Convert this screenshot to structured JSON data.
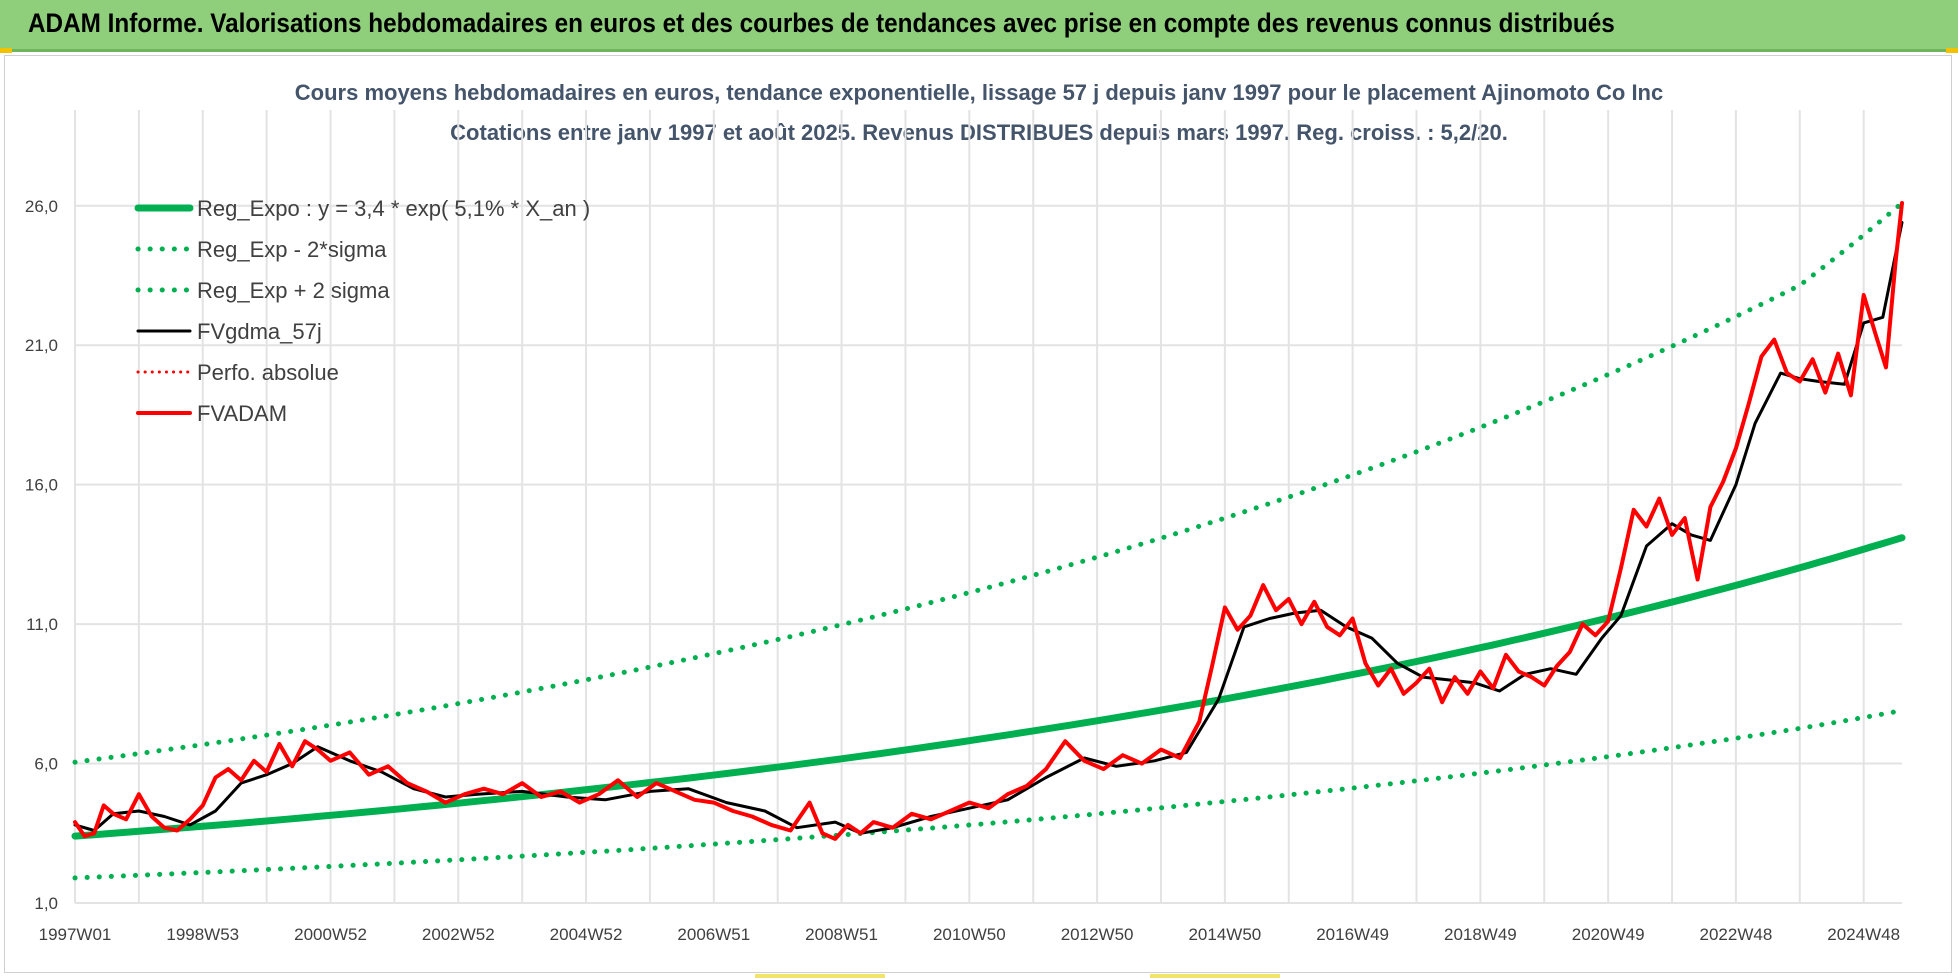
{
  "header": {
    "title": "ADAM Informe. Valorisations hebdomadaires en euros et des courbes de tendances avec prise en compte des revenus connus distribués",
    "background": "#8fce7a"
  },
  "chart_data": {
    "type": "line",
    "title": "Cours moyens hebdomadaires en euros, tendance exponentielle, lissage 57 j depuis janv 1997  pour le placement Ajinomoto Co Inc",
    "subtitle": "Cotations entre janv 1997 et août 2025.  Revenus DISTRIBUES depuis mars 1997. Reg. croiss. : 5,2/20.",
    "xlabel": "",
    "ylabel": "",
    "x_range": [
      1997.0,
      2025.6
    ],
    "ylim": [
      1.0,
      28.0
    ],
    "y_ticks": [
      1.0,
      6.0,
      11.0,
      16.0,
      21.0,
      26.0
    ],
    "y_tick_labels": [
      "1,0",
      "6,0",
      "11,0",
      "16,0",
      "21,0",
      "26,0"
    ],
    "x_ticks": [
      1997.0,
      1999.0,
      2001.0,
      2003.0,
      2005.0,
      2007.0,
      2009.0,
      2011.0,
      2013.0,
      2015.0,
      2017.0,
      2019.0,
      2021.0,
      2023.0,
      2025.0
    ],
    "x_tick_labels": [
      "1997W01",
      "1998W53",
      "2000W52",
      "2002W52",
      "2004W52",
      "2006W51",
      "2008W51",
      "2010W50",
      "2012W50",
      "2014W50",
      "2016W49",
      "2018W49",
      "2020W49",
      "2022W48",
      "2024W48"
    ],
    "grid": true,
    "legend_position": "top-left",
    "series": [
      {
        "name": "Reg_Expo : y = 3,4 * exp( 5,1% *  X_an )",
        "style": "solid",
        "color": "#00b050",
        "x": [
          1997.0,
          2000.0,
          2003.0,
          2006.0,
          2009.0,
          2012.0,
          2015.0,
          2018.0,
          2021.0,
          2024.0,
          2025.6
        ],
        "y": [
          3.4,
          3.94,
          4.58,
          5.32,
          6.17,
          7.17,
          8.32,
          9.66,
          11.22,
          13.02,
          14.1
        ]
      },
      {
        "name": "Reg_Exp - 2*sigma",
        "style": "dotted",
        "color": "#00b050",
        "x": [
          1997.0,
          2000.0,
          2003.0,
          2006.0,
          2009.0,
          2012.0,
          2015.0,
          2018.0,
          2021.0,
          2024.0,
          2025.6
        ],
        "y": [
          1.9,
          2.2,
          2.55,
          2.96,
          3.44,
          3.99,
          4.64,
          5.38,
          6.25,
          7.26,
          7.9
        ]
      },
      {
        "name": "Reg_Exp + 2 sigma",
        "style": "dotted",
        "color": "#00b050",
        "x": [
          1997.0,
          2000.0,
          2003.0,
          2006.0,
          2009.0,
          2012.0,
          2015.0,
          2018.0,
          2021.0,
          2024.0,
          2025.6
        ],
        "y": [
          6.05,
          7.02,
          8.15,
          9.46,
          10.98,
          12.75,
          14.8,
          17.18,
          19.95,
          23.15,
          26.1
        ]
      },
      {
        "name": "FVgdma_57j",
        "style": "solid",
        "color": "#000000",
        "x": [
          1997.0,
          1997.3,
          1997.6,
          1998.0,
          1998.4,
          1998.8,
          1999.2,
          1999.6,
          2000.0,
          2000.4,
          2000.8,
          2001.3,
          2001.8,
          2002.3,
          2002.8,
          2003.3,
          2004.0,
          2004.7,
          2005.3,
          2006.0,
          2006.6,
          2007.2,
          2007.8,
          2008.3,
          2008.9,
          2009.3,
          2009.8,
          2010.4,
          2011.0,
          2011.6,
          2012.2,
          2012.8,
          2013.3,
          2013.9,
          2014.4,
          2014.9,
          2015.3,
          2015.7,
          2016.1,
          2016.5,
          2016.9,
          2017.3,
          2017.7,
          2018.1,
          2018.5,
          2018.9,
          2019.3,
          2019.7,
          2020.1,
          2020.5,
          2020.9,
          2021.2,
          2021.6,
          2022.0,
          2022.3,
          2022.6,
          2023.0,
          2023.3,
          2023.7,
          2024.0,
          2024.3,
          2024.7,
          2025.0,
          2025.3,
          2025.6
        ],
        "y": [
          3.8,
          3.6,
          4.2,
          4.3,
          4.1,
          3.8,
          4.3,
          5.3,
          5.6,
          6.0,
          6.6,
          6.1,
          5.7,
          5.1,
          4.8,
          4.9,
          5.0,
          4.8,
          4.7,
          5.0,
          5.1,
          4.6,
          4.3,
          3.7,
          3.9,
          3.5,
          3.7,
          4.1,
          4.4,
          4.7,
          5.5,
          6.2,
          5.9,
          6.1,
          6.4,
          8.3,
          10.9,
          11.2,
          11.4,
          11.5,
          10.9,
          10.5,
          9.6,
          9.1,
          9.0,
          8.9,
          8.6,
          9.2,
          9.4,
          9.2,
          10.5,
          11.3,
          13.8,
          14.6,
          14.2,
          14.0,
          16.0,
          18.2,
          20.0,
          19.8,
          19.7,
          19.6,
          21.8,
          22.0,
          25.4
        ]
      },
      {
        "name": "Perfo. absolue",
        "style": "dotted",
        "color": "#ff0000",
        "x": [],
        "y": []
      },
      {
        "name": "FVADAM",
        "style": "solid",
        "color": "#ff0000",
        "x": [
          1997.0,
          1997.15,
          1997.3,
          1997.45,
          1997.6,
          1997.8,
          1998.0,
          1998.2,
          1998.4,
          1998.6,
          1998.8,
          1999.0,
          1999.2,
          1999.4,
          1999.6,
          1999.8,
          2000.0,
          2000.2,
          2000.4,
          2000.6,
          2000.8,
          2001.0,
          2001.3,
          2001.6,
          2001.9,
          2002.2,
          2002.5,
          2002.8,
          2003.1,
          2003.4,
          2003.7,
          2004.0,
          2004.3,
          2004.6,
          2004.9,
          2005.2,
          2005.5,
          2005.8,
          2006.1,
          2006.4,
          2006.7,
          2007.0,
          2007.3,
          2007.6,
          2007.9,
          2008.2,
          2008.5,
          2008.7,
          2008.9,
          2009.1,
          2009.3,
          2009.5,
          2009.8,
          2010.1,
          2010.4,
          2010.7,
          2011.0,
          2011.3,
          2011.6,
          2011.9,
          2012.2,
          2012.5,
          2012.8,
          2013.1,
          2013.4,
          2013.7,
          2014.0,
          2014.3,
          2014.6,
          2014.8,
          2015.0,
          2015.2,
          2015.4,
          2015.6,
          2015.8,
          2016.0,
          2016.2,
          2016.4,
          2016.6,
          2016.8,
          2017.0,
          2017.2,
          2017.4,
          2017.6,
          2017.8,
          2018.0,
          2018.2,
          2018.4,
          2018.6,
          2018.8,
          2019.0,
          2019.2,
          2019.4,
          2019.6,
          2019.8,
          2020.0,
          2020.2,
          2020.4,
          2020.6,
          2020.8,
          2021.0,
          2021.2,
          2021.4,
          2021.6,
          2021.8,
          2022.0,
          2022.2,
          2022.4,
          2022.6,
          2022.8,
          2023.0,
          2023.2,
          2023.4,
          2023.6,
          2023.8,
          2024.0,
          2024.2,
          2024.4,
          2024.6,
          2024.8,
          2025.0,
          2025.2,
          2025.35,
          2025.5,
          2025.6
        ],
        "y": [
          3.9,
          3.4,
          3.5,
          4.5,
          4.2,
          4.0,
          4.9,
          4.1,
          3.7,
          3.6,
          4.0,
          4.5,
          5.5,
          5.8,
          5.4,
          6.1,
          5.7,
          6.7,
          5.9,
          6.8,
          6.5,
          6.1,
          6.4,
          5.6,
          5.9,
          5.3,
          5.0,
          4.6,
          4.9,
          5.1,
          4.9,
          5.3,
          4.8,
          5.0,
          4.6,
          4.9,
          5.4,
          4.8,
          5.3,
          5.0,
          4.7,
          4.6,
          4.3,
          4.1,
          3.8,
          3.6,
          4.6,
          3.5,
          3.3,
          3.8,
          3.5,
          3.9,
          3.7,
          4.2,
          4.0,
          4.3,
          4.6,
          4.4,
          4.9,
          5.2,
          5.8,
          6.8,
          6.1,
          5.8,
          6.3,
          6.0,
          6.5,
          6.2,
          7.5,
          9.5,
          11.6,
          10.8,
          11.3,
          12.4,
          11.5,
          11.9,
          11.0,
          11.8,
          10.9,
          10.6,
          11.2,
          9.6,
          8.8,
          9.4,
          8.5,
          8.9,
          9.4,
          8.2,
          9.1,
          8.5,
          9.3,
          8.7,
          9.9,
          9.3,
          9.1,
          8.8,
          9.5,
          10.0,
          11.0,
          10.6,
          11.1,
          13.0,
          15.1,
          14.5,
          15.5,
          14.2,
          14.8,
          12.6,
          15.2,
          16.1,
          17.3,
          18.9,
          20.6,
          21.2,
          20.0,
          19.7,
          20.5,
          19.3,
          20.7,
          19.2,
          22.8,
          21.3,
          20.2,
          24.0,
          26.1
        ]
      }
    ]
  }
}
